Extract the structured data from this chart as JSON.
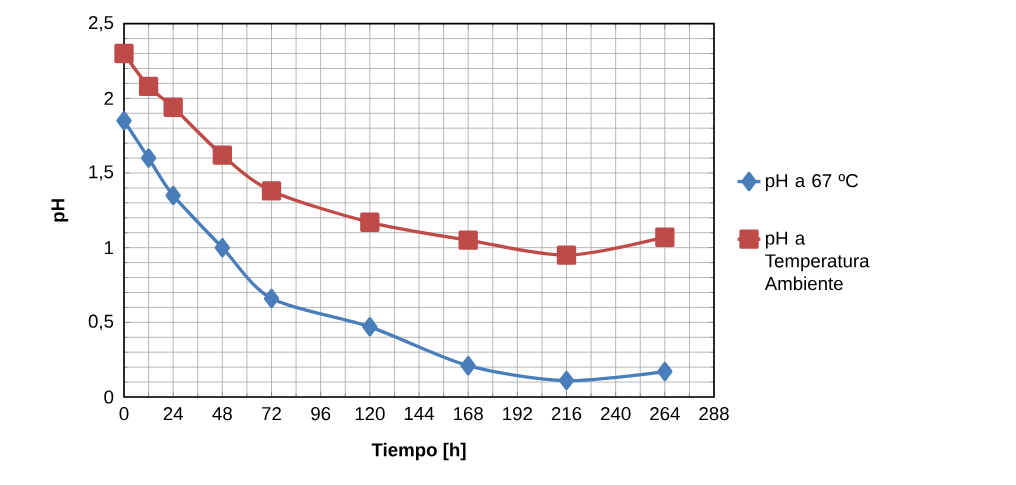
{
  "chart_data": {
    "type": "line",
    "xlabel": "Tiempo [h]",
    "ylabel": "pH",
    "xlim": [
      0,
      288
    ],
    "xticks": [
      0,
      24,
      48,
      72,
      96,
      120,
      144,
      168,
      192,
      216,
      240,
      264,
      288
    ],
    "ylim": [
      0,
      2.5
    ],
    "yticks": [
      0,
      {
        "value": 0.5,
        "label": "0,5"
      },
      1,
      {
        "value": 1.5,
        "label": "1,5"
      },
      2,
      {
        "value": 2.5,
        "label": "2,5"
      }
    ],
    "grid": true,
    "legend": "right",
    "line_style": "solid",
    "x": [
      0,
      12,
      24,
      48,
      72,
      120,
      168,
      216,
      264
    ],
    "series": [
      {
        "name": "pH a 67 ºC",
        "color": "#4a7ebb",
        "marker": "diamond",
        "values": [
          1.85,
          1.6,
          1.35,
          1.0,
          0.66,
          0.47,
          0.21,
          0.11,
          0.17
        ]
      },
      {
        "name": "pH a Temperatura Ambiente",
        "color": "#be4b48",
        "marker": "square",
        "values": [
          2.3,
          2.08,
          1.94,
          1.62,
          1.38,
          1.17,
          1.05,
          0.95,
          1.07
        ]
      }
    ]
  }
}
